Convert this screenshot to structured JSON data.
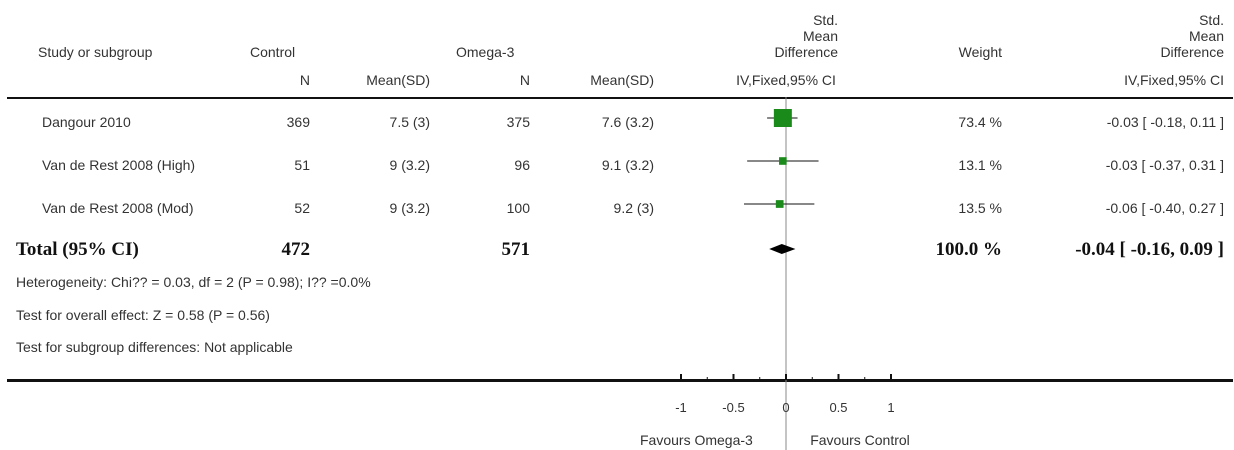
{
  "chart_data": {
    "type": "forest",
    "headers": {
      "study": "Study or subgroup",
      "group1": "Control",
      "group2": "Omega-3",
      "n": "N",
      "meansd": "Mean(SD)",
      "effect_line1": "Std.",
      "effect_line2": "Mean",
      "effect_line3": "Difference",
      "effect_method": "IV,Fixed,95% CI",
      "weight": "Weight",
      "right_line1": "Std.",
      "right_line2": "Mean",
      "right_line3": "Difference",
      "right_method": "IV,Fixed,95% CI"
    },
    "studies": [
      {
        "name": "Dangour 2010",
        "n1": "369",
        "meansd1": "7.5 (3)",
        "n2": "375",
        "meansd2": "7.6 (3.2)",
        "weight": "73.4 %",
        "ci_text": "-0.03 [ -0.18, 0.11 ]",
        "est": -0.03,
        "lo": -0.18,
        "hi": 0.11,
        "w": 73.4
      },
      {
        "name": "Van de Rest 2008 (High)",
        "n1": "51",
        "meansd1": "9 (3.2)",
        "n2": "96",
        "meansd2": "9.1 (3.2)",
        "weight": "13.1 %",
        "ci_text": "-0.03 [ -0.37, 0.31 ]",
        "est": -0.03,
        "lo": -0.37,
        "hi": 0.31,
        "w": 13.1
      },
      {
        "name": "Van de Rest 2008 (Mod)",
        "n1": "52",
        "meansd1": "9 (3.2)",
        "n2": "100",
        "meansd2": "9.2 (3)",
        "weight": "13.5 %",
        "ci_text": "-0.06 [ -0.40, 0.27 ]",
        "est": -0.06,
        "lo": -0.4,
        "hi": 0.27,
        "w": 13.5
      }
    ],
    "total": {
      "label": "Total (95% CI)",
      "n1": "472",
      "n2": "571",
      "weight": "100.0 %",
      "ci_text": "-0.04 [ -0.16, 0.09 ]",
      "est": -0.04,
      "lo": -0.16,
      "hi": 0.09
    },
    "notes": {
      "heterogeneity": "Heterogeneity: Chi?? = 0.03, df = 2 (P = 0.98); I?? =0.0%",
      "overall": "Test for overall effect: Z = 0.58 (P = 0.56)",
      "subgroup": "Test for subgroup differences: Not applicable"
    },
    "axis": {
      "xlim": [
        -1,
        1
      ],
      "ticks": [
        -1,
        -0.5,
        0,
        0.5,
        1
      ],
      "tick_labels": [
        "-1",
        "-0.5",
        "0",
        "0.5",
        "1"
      ],
      "left_label": "Favours Omega-3",
      "right_label": "Favours Control"
    },
    "colors": {
      "marker": "#1a8a1a",
      "line": "#111111"
    }
  }
}
